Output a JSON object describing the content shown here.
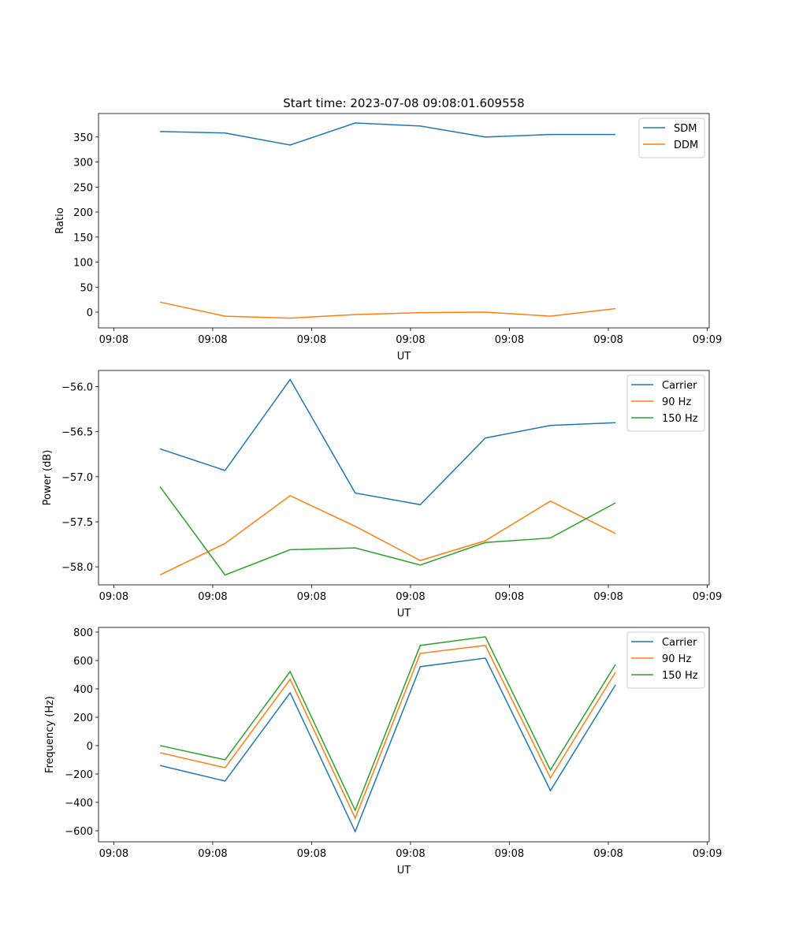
{
  "chart_data": [
    {
      "type": "line",
      "title": "Start time: 2023-07-08 09:08:01.609558",
      "xlabel": "UT",
      "ylabel": "Ratio",
      "x": [
        0,
        1,
        2,
        3,
        4,
        5,
        6,
        7
      ],
      "xlim": [
        -0.945,
        8.44
      ],
      "xticks": [
        -0.71,
        0.81,
        2.33,
        3.85,
        5.37,
        6.89,
        8.41
      ],
      "xtick_labels": [
        "09:08",
        "09:08",
        "09:08",
        "09:08",
        "09:08",
        "09:08",
        "09:09"
      ],
      "ylim": [
        -31.5,
        397
      ],
      "yticks": [
        0,
        50,
        100,
        150,
        200,
        250,
        300,
        350
      ],
      "ytick_labels": [
        "0",
        "50",
        "100",
        "150",
        "200",
        "250",
        "300",
        "350"
      ],
      "legend": "top-right",
      "series": [
        {
          "name": "SDM",
          "color": "#1f77b4",
          "values": [
            361,
            358,
            334,
            378,
            372,
            350,
            355,
            355
          ]
        },
        {
          "name": "DDM",
          "color": "#ff7f0e",
          "values": [
            20,
            -8,
            -12,
            -5,
            -1,
            0,
            -8,
            7
          ]
        }
      ]
    },
    {
      "type": "line",
      "title": "",
      "xlabel": "UT",
      "ylabel": "Power (dB)",
      "x": [
        0,
        1,
        2,
        3,
        4,
        5,
        6,
        7
      ],
      "xlim": [
        -0.945,
        8.44
      ],
      "xticks": [
        -0.71,
        0.81,
        2.33,
        3.85,
        5.37,
        6.89,
        8.41
      ],
      "xtick_labels": [
        "09:08",
        "09:08",
        "09:08",
        "09:08",
        "09:08",
        "09:08",
        "09:09"
      ],
      "ylim": [
        -58.2,
        -55.82
      ],
      "yticks": [
        -58.0,
        -57.5,
        -57.0,
        -56.5,
        -56.0
      ],
      "ytick_labels": [
        "−58.0",
        "−57.5",
        "−57.0",
        "−56.5",
        "−56.0"
      ],
      "legend": "top-right",
      "series": [
        {
          "name": "Carrier",
          "color": "#1f77b4",
          "values": [
            -56.69,
            -56.93,
            -55.92,
            -57.18,
            -57.31,
            -56.57,
            -56.43,
            -56.4
          ]
        },
        {
          "name": "90 Hz",
          "color": "#ff7f0e",
          "values": [
            -58.09,
            -57.74,
            -57.21,
            -57.55,
            -57.93,
            -57.71,
            -57.27,
            -57.63
          ]
        },
        {
          "name": "150 Hz",
          "color": "#2ca02c",
          "values": [
            -57.11,
            -58.09,
            -57.81,
            -57.79,
            -57.98,
            -57.73,
            -57.68,
            -57.29
          ]
        }
      ]
    },
    {
      "type": "line",
      "title": "",
      "xlabel": "UT",
      "ylabel": "Frequency (Hz)",
      "x": [
        0,
        1,
        2,
        3,
        4,
        5,
        6,
        7
      ],
      "xlim": [
        -0.945,
        8.44
      ],
      "xticks": [
        -0.71,
        0.81,
        2.33,
        3.85,
        5.37,
        6.89,
        8.41
      ],
      "xtick_labels": [
        "09:08",
        "09:08",
        "09:08",
        "09:08",
        "09:08",
        "09:08",
        "09:09"
      ],
      "ylim": [
        -678,
        833
      ],
      "yticks": [
        -600,
        -400,
        -200,
        0,
        200,
        400,
        600,
        800
      ],
      "ytick_labels": [
        "−600",
        "−400",
        "−200",
        "0",
        "200",
        "400",
        "600",
        "800"
      ],
      "legend": "top-right",
      "series": [
        {
          "name": "Carrier",
          "color": "#1f77b4",
          "values": [
            -140,
            -250,
            372,
            -606,
            556,
            617,
            -317,
            428
          ]
        },
        {
          "name": "90 Hz",
          "color": "#ff7f0e",
          "values": [
            -50,
            -156,
            467,
            -511,
            650,
            706,
            -228,
            517
          ]
        },
        {
          "name": "150 Hz",
          "color": "#2ca02c",
          "values": [
            0,
            -100,
            522,
            -456,
            706,
            767,
            -172,
            572
          ]
        }
      ]
    }
  ]
}
